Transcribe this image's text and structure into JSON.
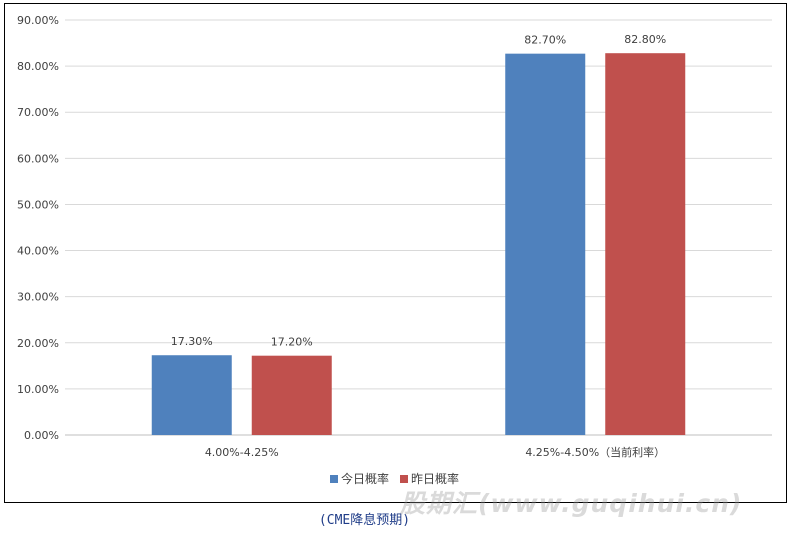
{
  "chart_data": {
    "type": "bar",
    "categories": [
      "4.00%-4.25%",
      "4.25%-4.50%（当前利率）"
    ],
    "series": [
      {
        "name": "今日概率",
        "values": [
          17.3,
          82.7
        ],
        "labels": [
          "17.30%",
          "82.70%"
        ],
        "color": "#4f81bd"
      },
      {
        "name": "昨日概率",
        "values": [
          17.2,
          82.8
        ],
        "labels": [
          "17.20%",
          "82.80%"
        ],
        "color": "#c0504d"
      }
    ],
    "ylim": [
      0,
      90
    ],
    "yticks": [
      "0.00%",
      "10.00%",
      "20.00%",
      "30.00%",
      "40.00%",
      "50.00%",
      "60.00%",
      "70.00%",
      "80.00%",
      "90.00%"
    ],
    "grid": true,
    "legend": "bottom-center"
  },
  "caption": "(CME降息预期)",
  "watermark": "股期汇(www.guqihui.cn)"
}
